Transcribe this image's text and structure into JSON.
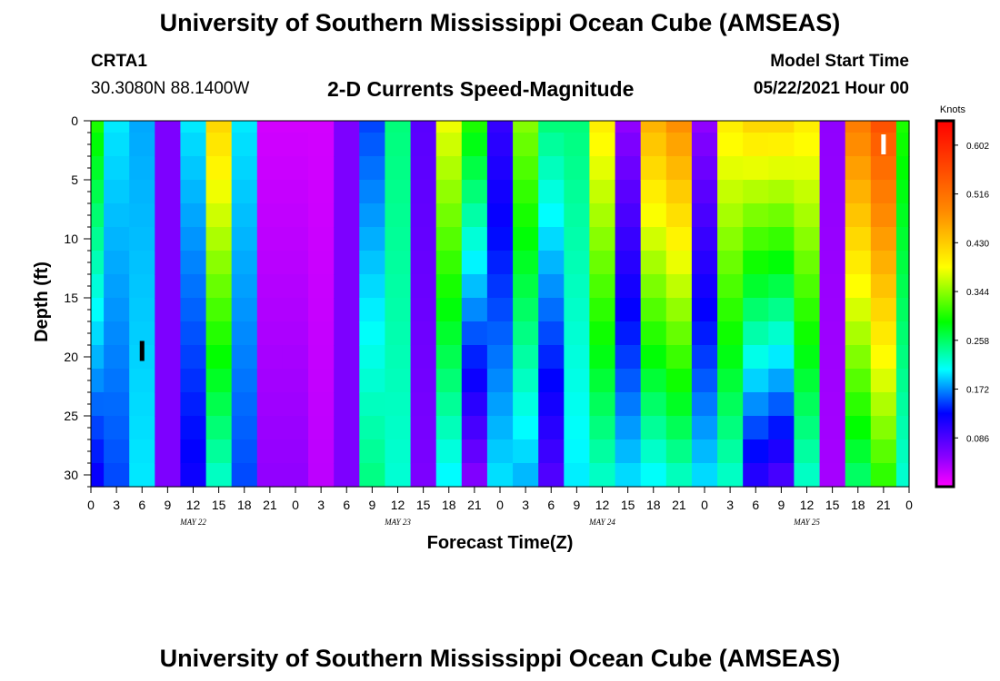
{
  "header": {
    "title": "University of Southern Mississippi Ocean Cube (AMSEAS)",
    "footer_title": "University of Southern Mississippi Ocean Cube (AMSEAS)",
    "station": "CRTA1",
    "coords": "30.3080N  88.1400W",
    "plot_title": "2-D Currents Speed-Magnitude",
    "model_start_label": "Model Start Time",
    "model_start_value": "05/22/2021 Hour 00"
  },
  "chart_data": {
    "type": "heatmap",
    "title": "2-D Currents Speed-Magnitude",
    "xlabel": "Forecast Time(Z)",
    "ylabel": "Depth (ft)",
    "x_tick_labels": [
      "0",
      "3",
      "6",
      "9",
      "12",
      "15",
      "18",
      "21",
      "0",
      "3",
      "6",
      "9",
      "12",
      "15",
      "18",
      "21",
      "0",
      "3",
      "6",
      "9",
      "12",
      "15",
      "18",
      "21",
      "0",
      "3",
      "6",
      "9",
      "12",
      "15",
      "18",
      "21",
      "0"
    ],
    "date_labels": [
      {
        "label": "MAY 22",
        "hour": 12
      },
      {
        "label": "MAY 23",
        "hour": 36
      },
      {
        "label": "MAY 24",
        "hour": 60
      },
      {
        "label": "MAY 25",
        "hour": 84
      }
    ],
    "xlim_hours": [
      0,
      96
    ],
    "ylim_depth_ft": [
      0,
      31
    ],
    "y_ticks": [
      0,
      5,
      10,
      15,
      20,
      25,
      30
    ],
    "colorbar": {
      "label": "Knots",
      "ticks": [
        "0.602",
        "0.516",
        "0.430",
        "0.344",
        "0.258",
        "0.172",
        "0.086"
      ],
      "tick_values": [
        0.602,
        0.516,
        0.43,
        0.344,
        0.258,
        0.172,
        0.086
      ],
      "min": 0.0,
      "max": 0.645
    },
    "depths_ft": [
      0,
      2,
      4,
      6,
      8,
      10,
      12,
      14,
      16,
      18,
      20,
      22,
      24,
      26,
      28,
      30
    ],
    "time_columns_hours": [
      0,
      3,
      6,
      9,
      12,
      15,
      18,
      21,
      24,
      27,
      30,
      33,
      36,
      39,
      42,
      45,
      48,
      51,
      54,
      57,
      60,
      63,
      66,
      69,
      72,
      75,
      78,
      81,
      84,
      87,
      90,
      93,
      96
    ],
    "speed_profiles": [
      {
        "surface": 0.3,
        "bottom": 0.12
      },
      {
        "surface": 0.2,
        "bottom": 0.15
      },
      {
        "surface": 0.18,
        "bottom": 0.2
      },
      {
        "surface": 0.06,
        "bottom": 0.06
      },
      {
        "surface": 0.2,
        "bottom": 0.12
      },
      {
        "surface": 0.42,
        "bottom": 0.22
      },
      {
        "surface": 0.2,
        "bottom": 0.15
      },
      {
        "surface": 0.02,
        "bottom": 0.05
      },
      {
        "surface": 0.02,
        "bottom": 0.05
      },
      {
        "surface": 0.02,
        "bottom": 0.03
      },
      {
        "surface": 0.06,
        "bottom": 0.06
      },
      {
        "surface": 0.15,
        "bottom": 0.25
      },
      {
        "surface": 0.25,
        "bottom": 0.22
      },
      {
        "surface": 0.08,
        "bottom": 0.06
      },
      {
        "surface": 0.38,
        "bottom": 0.2
      },
      {
        "surface": 0.3,
        "bottom": 0.05
      },
      {
        "surface": 0.1,
        "bottom": 0.2
      },
      {
        "surface": 0.34,
        "bottom": 0.18
      },
      {
        "surface": 0.25,
        "bottom": 0.08
      },
      {
        "surface": 0.25,
        "bottom": 0.2
      },
      {
        "surface": 0.4,
        "bottom": 0.22
      },
      {
        "surface": 0.05,
        "bottom": 0.2
      },
      {
        "surface": 0.45,
        "bottom": 0.2
      },
      {
        "surface": 0.48,
        "bottom": 0.22
      },
      {
        "surface": 0.05,
        "bottom": 0.2
      },
      {
        "surface": 0.4,
        "bottom": 0.22
      },
      {
        "surface": 0.42,
        "bottom": 0.1
      },
      {
        "surface": 0.42,
        "bottom": 0.08
      },
      {
        "surface": 0.4,
        "bottom": 0.22
      },
      {
        "surface": 0.05,
        "bottom": 0.04
      },
      {
        "surface": 0.5,
        "bottom": 0.25
      },
      {
        "surface": 0.55,
        "bottom": 0.3
      },
      {
        "surface": 0.3,
        "bottom": 0.22
      }
    ],
    "markers": [
      {
        "hour": 6,
        "depth_ft": 19.5,
        "color": "#000000"
      },
      {
        "hour": 93,
        "depth_ft": 2,
        "color": "#ffffff"
      }
    ],
    "grid": false,
    "legend_placement": "right"
  }
}
